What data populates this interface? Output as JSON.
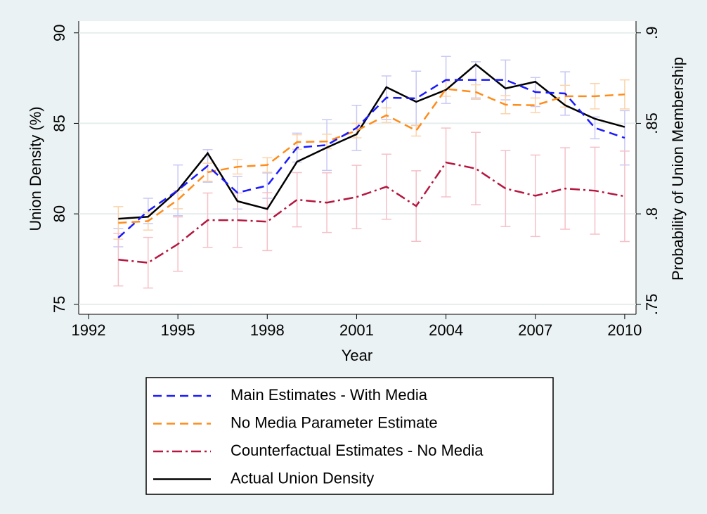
{
  "chart_data": {
    "type": "line",
    "x_label": "Year",
    "y_label": "Union Density (%)",
    "y2_label": "Probability of Union Membership",
    "x": [
      1993,
      1994,
      1995,
      1996,
      1997,
      1998,
      1999,
      2000,
      2001,
      2002,
      2003,
      2004,
      2005,
      2006,
      2007,
      2008,
      2009,
      2010
    ],
    "xlim": [
      1991.67,
      2010.38
    ],
    "xticks": [
      1992,
      1995,
      1998,
      2001,
      2004,
      2007,
      2010
    ],
    "ylim": [
      74.45,
      90.65
    ],
    "yticks": [
      75,
      80,
      85,
      90
    ],
    "y2lim": [
      0.7445,
      0.9065
    ],
    "y2ticks": [
      {
        "value": 0.75,
        "label": ".75"
      },
      {
        "value": 0.8,
        "label": ".8"
      },
      {
        "value": 0.85,
        "label": ".85"
      },
      {
        "value": 0.9,
        "label": ".9"
      }
    ],
    "grid": true,
    "series": [
      {
        "name": "Main Estimates - With Media",
        "color": "#1a1aff",
        "error_color": "#c8c8f5",
        "dash": "12 7",
        "values": [
          78.68,
          80.16,
          81.3,
          82.65,
          81.17,
          81.56,
          83.66,
          83.8,
          84.75,
          86.42,
          86.38,
          87.4,
          87.4,
          87.4,
          86.73,
          86.65,
          84.75,
          84.2
        ],
        "error": [
          0.5,
          0.7,
          1.4,
          0.9,
          0.9,
          0.7,
          0.8,
          1.4,
          1.25,
          1.2,
          1.5,
          1.3,
          1.0,
          1.1,
          0.8,
          1.2,
          0.6,
          1.5
        ]
      },
      {
        "name": "No Media Parameter Estimate",
        "color": "#ff8c1a",
        "error_color": "#fbd3ab",
        "dash": "12 7",
        "values": [
          79.5,
          79.6,
          80.78,
          82.3,
          82.6,
          82.7,
          83.97,
          84.0,
          84.6,
          85.45,
          84.6,
          86.9,
          86.73,
          86.03,
          86.0,
          86.5,
          86.5,
          86.6
        ],
        "error": [
          0.9,
          0.5,
          0.5,
          0.5,
          0.4,
          0.4,
          0.4,
          0.4,
          0.4,
          0.4,
          0.3,
          0.4,
          0.4,
          0.5,
          0.4,
          0.6,
          0.7,
          0.8
        ]
      },
      {
        "name": "Counterfactual Estimates - No Media",
        "color": "#b5173f",
        "error_color": "#f5c0c8",
        "dash": "14 5 3 5",
        "values": [
          77.47,
          77.3,
          78.33,
          79.65,
          79.65,
          79.57,
          80.78,
          80.62,
          80.93,
          81.5,
          80.43,
          82.84,
          82.5,
          81.4,
          81.0,
          81.4,
          81.28,
          80.97
        ],
        "error": [
          1.45,
          1.4,
          1.5,
          1.5,
          1.5,
          1.6,
          1.5,
          1.65,
          1.75,
          1.8,
          1.95,
          1.9,
          2.0,
          2.1,
          2.25,
          2.25,
          2.4,
          2.5
        ]
      },
      {
        "name": "Actual Union Density",
        "color": "#000000",
        "values": [
          79.73,
          79.84,
          81.3,
          83.35,
          80.7,
          80.27,
          82.88,
          83.66,
          84.4,
          87.0,
          86.19,
          86.85,
          88.25,
          86.93,
          87.3,
          86.0,
          85.25,
          84.8
        ]
      }
    ]
  }
}
